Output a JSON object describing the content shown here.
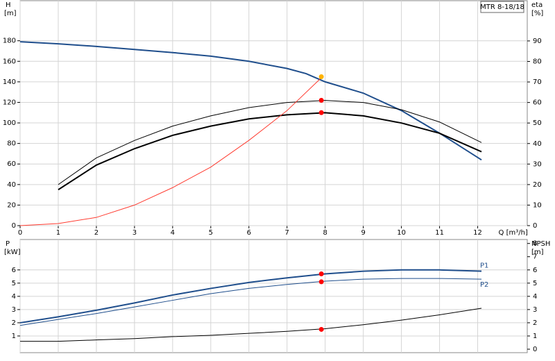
{
  "chart_data": [
    {
      "type": "line",
      "title": "MTR 8-18/18",
      "ylabel": "H",
      "yunit": "[m]",
      "y2label": "eta",
      "y2unit": "[%]",
      "xlabel": "Q [m³/h]",
      "xlim": [
        0,
        13.3
      ],
      "xticks": [
        0,
        1,
        2,
        3,
        4,
        5,
        6,
        7,
        8,
        9,
        10,
        11,
        12
      ],
      "ylim": [
        0,
        219
      ],
      "yticks": [
        0,
        20,
        40,
        60,
        80,
        100,
        120,
        140,
        160,
        180
      ],
      "y2lim": [
        0,
        109.6
      ],
      "y2ticks": [
        0,
        10,
        20,
        30,
        40,
        50,
        60,
        70,
        80,
        90
      ],
      "grid": true,
      "series": [
        {
          "color": "#1f4e8c",
          "x": [
            0,
            1,
            2,
            3,
            4,
            5,
            6,
            7,
            7.5,
            8,
            9,
            10,
            11,
            12.1
          ],
          "values": [
            179,
            177,
            174.5,
            171.5,
            168.5,
            165,
            160,
            153,
            148,
            140,
            129,
            112,
            90,
            64
          ]
        },
        {
          "color": "#000000",
          "axis": "y2",
          "x": [
            1,
            2,
            3,
            4,
            5,
            6,
            7,
            8,
            9,
            10,
            11,
            12.1
          ],
          "values": [
            20,
            33,
            41.5,
            48.5,
            53.5,
            57.5,
            60,
            61,
            60,
            56.5,
            50.5,
            40.5
          ]
        },
        {
          "color": "#000000",
          "axis": "y2",
          "x": [
            1,
            2,
            3,
            4,
            5,
            6,
            7,
            8,
            9,
            10,
            11,
            12.1
          ],
          "values": [
            17.5,
            29.5,
            37.5,
            44,
            48.5,
            52,
            54,
            55,
            53.5,
            50,
            45,
            36
          ]
        },
        {
          "color": "#ff3b30",
          "x": [
            0,
            1,
            2,
            3,
            4,
            5,
            6,
            7,
            7.9
          ],
          "values": [
            0,
            2,
            8,
            20,
            37,
            57,
            83,
            112,
            144
          ]
        }
      ],
      "points": [
        {
          "color": "#ffb300",
          "x": 7.9,
          "value": 145
        },
        {
          "color": "#ff0000",
          "x": 7.9,
          "value": 122
        },
        {
          "color": "#ff0000",
          "x": 7.9,
          "value": 110
        }
      ]
    },
    {
      "type": "line",
      "ylabel": "P",
      "yunit": "[kW]",
      "y2label": "NPSH",
      "y2unit": "[m]",
      "xlim": [
        0,
        13.3
      ],
      "ylim": [
        0,
        8.3
      ],
      "yticks": [
        1,
        2,
        3,
        4,
        5,
        6
      ],
      "y2lim": [
        0,
        8.3
      ],
      "y2ticks": [
        0,
        1,
        2,
        3,
        4,
        5,
        6,
        7,
        8
      ],
      "grid": true,
      "series": [
        {
          "name": "P1",
          "color": "#1f4e8c",
          "x": [
            0,
            1,
            2,
            3,
            4,
            5,
            6,
            7,
            8,
            9,
            10,
            11,
            12.1
          ],
          "values": [
            2.0,
            2.45,
            2.95,
            3.5,
            4.1,
            4.6,
            5.05,
            5.4,
            5.7,
            5.9,
            6.0,
            6.0,
            5.9
          ]
        },
        {
          "name": "P2",
          "color": "#1f4e8c",
          "x": [
            0,
            1,
            2,
            3,
            4,
            5,
            6,
            7,
            8,
            9,
            10,
            11,
            12.1
          ],
          "values": [
            1.8,
            2.25,
            2.7,
            3.2,
            3.7,
            4.2,
            4.6,
            4.9,
            5.15,
            5.3,
            5.35,
            5.35,
            5.3
          ]
        },
        {
          "color": "#000000",
          "axis": "y2",
          "x": [
            0,
            1,
            2,
            3,
            4,
            5,
            6,
            7,
            8,
            9,
            10,
            11,
            12.1
          ],
          "values": [
            0.6,
            0.6,
            0.7,
            0.8,
            0.95,
            1.05,
            1.2,
            1.35,
            1.55,
            1.85,
            2.2,
            2.6,
            3.1
          ]
        }
      ],
      "points": [
        {
          "color": "#ff0000",
          "x": 7.9,
          "value": 5.7
        },
        {
          "color": "#ff0000",
          "x": 7.9,
          "value": 5.1
        },
        {
          "color": "#ff0000",
          "x": 7.9,
          "value": 1.5
        }
      ]
    }
  ]
}
